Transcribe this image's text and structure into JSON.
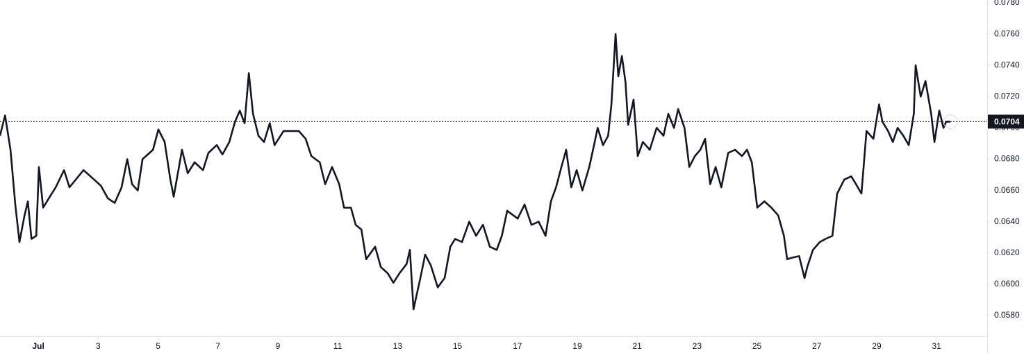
{
  "chart_data": {
    "type": "line",
    "x": [
      -0.28,
      -0.11,
      0.07,
      0.23,
      0.37,
      0.54,
      0.65,
      0.77,
      0.93,
      1.02,
      1.16,
      1.35,
      1.58,
      1.86,
      2.04,
      2.51,
      2.86,
      3.09,
      3.32,
      3.55,
      3.78,
      3.97,
      4.13,
      4.32,
      4.48,
      4.83,
      5.01,
      5.22,
      5.41,
      5.52,
      5.8,
      5.99,
      6.22,
      6.5,
      6.68,
      6.96,
      7.15,
      7.38,
      7.57,
      7.73,
      7.89,
      8.03,
      8.17,
      8.35,
      8.54,
      8.73,
      8.89,
      9.19,
      9.47,
      9.7,
      9.93,
      10.12,
      10.4,
      10.58,
      10.81,
      11.05,
      11.21,
      11.44,
      11.6,
      11.79,
      11.95,
      12.25,
      12.44,
      12.67,
      12.86,
      13.06,
      13.3,
      13.41,
      13.53,
      13.76,
      13.92,
      14.11,
      14.34,
      14.57,
      14.76,
      14.92,
      15.15,
      15.39,
      15.62,
      15.85,
      16.08,
      16.31,
      16.48,
      16.66,
      17.01,
      17.24,
      17.47,
      17.71,
      17.94,
      18.12,
      18.29,
      18.47,
      18.63,
      18.8,
      18.98,
      19.17,
      19.4,
      19.56,
      19.68,
      19.86,
      20.03,
      20.14,
      20.23,
      20.28,
      20.37,
      20.49,
      20.61,
      20.7,
      20.88,
      21.02,
      21.19,
      21.42,
      21.65,
      21.88,
      22.04,
      22.23,
      22.37,
      22.58,
      22.74,
      22.93,
      23.11,
      23.27,
      23.44,
      23.62,
      23.81,
      24.04,
      24.27,
      24.5,
      24.67,
      24.83,
      25.01,
      25.25,
      25.48,
      25.71,
      25.9,
      26.01,
      26.17,
      26.41,
      26.59,
      26.68,
      26.87,
      27.1,
      27.29,
      27.52,
      27.68,
      27.92,
      28.15,
      28.31,
      28.49,
      28.66,
      28.89,
      29.08,
      29.19,
      29.38,
      29.54,
      29.7,
      29.89,
      30.07,
      30.24,
      30.3,
      30.47,
      30.63,
      30.82,
      30.93,
      31.09,
      31.23,
      31.32,
      31.46
    ],
    "series": [
      {
        "color": "#131722",
        "values": [
          0.0695,
          0.0708,
          0.0686,
          0.0651,
          0.0627,
          0.0644,
          0.0653,
          0.0629,
          0.0631,
          0.0675,
          0.0649,
          0.0655,
          0.0662,
          0.0673,
          0.0662,
          0.0673,
          0.0667,
          0.0663,
          0.0655,
          0.0652,
          0.0662,
          0.068,
          0.0664,
          0.066,
          0.068,
          0.0686,
          0.0699,
          0.0691,
          0.0667,
          0.0656,
          0.0686,
          0.0671,
          0.0678,
          0.0673,
          0.0684,
          0.0689,
          0.0683,
          0.0691,
          0.0704,
          0.0711,
          0.0703,
          0.0735,
          0.0709,
          0.0695,
          0.0691,
          0.0703,
          0.0689,
          0.0698,
          0.0698,
          0.0698,
          0.0693,
          0.0682,
          0.0678,
          0.0664,
          0.0675,
          0.0664,
          0.0649,
          0.0649,
          0.0638,
          0.0635,
          0.0616,
          0.0624,
          0.0611,
          0.0607,
          0.0601,
          0.0607,
          0.0613,
          0.0622,
          0.0584,
          0.0604,
          0.0619,
          0.0612,
          0.0598,
          0.0604,
          0.0624,
          0.0629,
          0.0627,
          0.064,
          0.0631,
          0.0638,
          0.0624,
          0.0622,
          0.0631,
          0.0647,
          0.0642,
          0.0651,
          0.0638,
          0.064,
          0.0631,
          0.0653,
          0.0662,
          0.0675,
          0.0686,
          0.0662,
          0.0673,
          0.066,
          0.0675,
          0.0689,
          0.07,
          0.0689,
          0.0695,
          0.0715,
          0.0744,
          0.076,
          0.0733,
          0.0746,
          0.0729,
          0.0702,
          0.0718,
          0.0682,
          0.0691,
          0.0686,
          0.07,
          0.0695,
          0.0709,
          0.07,
          0.0712,
          0.07,
          0.0675,
          0.0682,
          0.0686,
          0.0693,
          0.0664,
          0.0675,
          0.0662,
          0.0684,
          0.0686,
          0.0682,
          0.0686,
          0.0678,
          0.0649,
          0.0653,
          0.0649,
          0.0644,
          0.0631,
          0.0616,
          0.0617,
          0.0618,
          0.0604,
          0.0611,
          0.0622,
          0.0627,
          0.0629,
          0.0631,
          0.0658,
          0.0667,
          0.0669,
          0.0664,
          0.0658,
          0.0698,
          0.0693,
          0.0715,
          0.0704,
          0.0698,
          0.0691,
          0.07,
          0.0695,
          0.0689,
          0.0709,
          0.074,
          0.072,
          0.073,
          0.0709,
          0.0691,
          0.0711,
          0.07,
          0.0704,
          0.0704
        ]
      }
    ],
    "last_price": 0.0704,
    "xlim": [
      -0.28,
      32.69
    ],
    "xticks": [
      {
        "value": 1,
        "label": "Jul"
      },
      3,
      5,
      7,
      9,
      11,
      13,
      15,
      17,
      19,
      21,
      23,
      25,
      27,
      29,
      31
    ],
    "ylim": [
      0.05667,
      0.078
    ],
    "yticks": [
      {
        "value": 0.058,
        "label": "0.0580"
      },
      {
        "value": 0.06,
        "label": "0.0600"
      },
      {
        "value": 0.062,
        "label": "0.0620"
      },
      {
        "value": 0.064,
        "label": "0.0640"
      },
      {
        "value": 0.066,
        "label": "0.0660"
      },
      {
        "value": 0.068,
        "label": "0.0680"
      },
      {
        "value": 0.07,
        "label": "0.0700"
      },
      {
        "value": 0.072,
        "label": "0.0720"
      },
      {
        "value": 0.074,
        "label": "0.0740"
      },
      {
        "value": 0.076,
        "label": "0.0760"
      },
      {
        "value": 0.078,
        "label": "0.0780"
      }
    ],
    "grid": false
  }
}
